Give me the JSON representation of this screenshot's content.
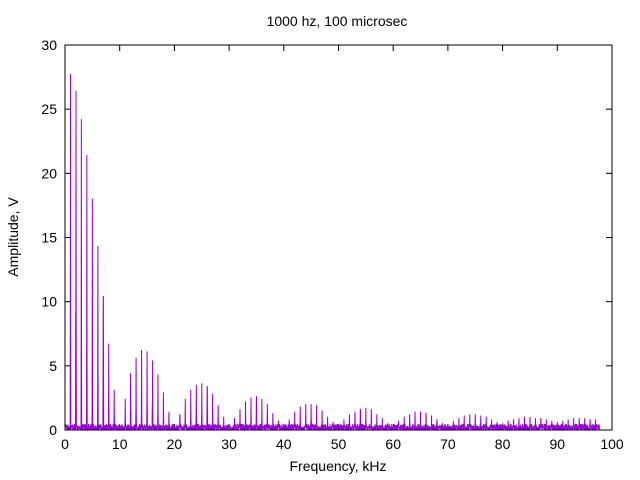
{
  "chart_data": {
    "type": "line",
    "title": "1000 hz, 100 microsec",
    "xlabel": "Frequency, kHz",
    "ylabel": "Amplitude, V",
    "xlim": [
      0,
      100
    ],
    "ylim": [
      0,
      30
    ],
    "x_ticks": [
      0,
      10,
      20,
      30,
      40,
      50,
      60,
      70,
      80,
      90,
      100
    ],
    "y_ticks": [
      0,
      5,
      10,
      15,
      20,
      25,
      30
    ],
    "grid": false,
    "legend": "none",
    "line_color": "#9400D3",
    "noise_floor_max": 0.45,
    "x_max_data": 97.7,
    "harmonics": {
      "spacing_khz": 1.0,
      "frequencies_khz": [
        1,
        2,
        3,
        4,
        5,
        6,
        7,
        8,
        9,
        10,
        11,
        12,
        13,
        14,
        15,
        16,
        17,
        18,
        19,
        20,
        21,
        22,
        23,
        24,
        25,
        26,
        27,
        28,
        29,
        30,
        31,
        32,
        33,
        34,
        35,
        36,
        37,
        38,
        39,
        40,
        41,
        42,
        43,
        44,
        45,
        46,
        47,
        48,
        49,
        50,
        51,
        52,
        53,
        54,
        55,
        56,
        57,
        58,
        59,
        60,
        61,
        62,
        63,
        64,
        65,
        66,
        67,
        68,
        69,
        70,
        71,
        72,
        73,
        74,
        75,
        76,
        77,
        78,
        79,
        80,
        81,
        82,
        83,
        84,
        85,
        86,
        87,
        88,
        89,
        90,
        91,
        92,
        93,
        94,
        95,
        96,
        97
      ],
      "amplitudes_v": [
        27.7,
        26.4,
        24.2,
        21.4,
        18.0,
        14.3,
        10.4,
        6.7,
        3.1,
        0.4,
        2.4,
        4.4,
        5.6,
        6.2,
        6.1,
        5.4,
        4.3,
        2.9,
        1.4,
        0.4,
        1.2,
        2.4,
        3.1,
        3.5,
        3.6,
        3.4,
        2.8,
        1.9,
        1.0,
        0.4,
        0.9,
        1.6,
        2.2,
        2.5,
        2.6,
        2.4,
        2.0,
        1.3,
        0.7,
        0.4,
        0.8,
        1.4,
        1.8,
        2.0,
        2.0,
        1.9,
        1.5,
        1.0,
        0.6,
        0.4,
        0.8,
        1.2,
        1.4,
        1.6,
        1.7,
        1.6,
        1.2,
        0.9,
        0.5,
        0.4,
        0.7,
        1.0,
        1.2,
        1.4,
        1.4,
        1.3,
        1.1,
        0.8,
        0.5,
        0.4,
        0.7,
        0.9,
        1.1,
        1.2,
        1.2,
        1.1,
        1.0,
        0.8,
        0.6,
        0.5,
        0.7,
        0.8,
        0.9,
        1.0,
        1.0,
        0.9,
        0.9,
        0.8,
        0.7,
        0.6,
        0.7,
        0.8,
        0.9,
        0.9,
        0.9,
        0.8,
        0.8
      ]
    }
  }
}
